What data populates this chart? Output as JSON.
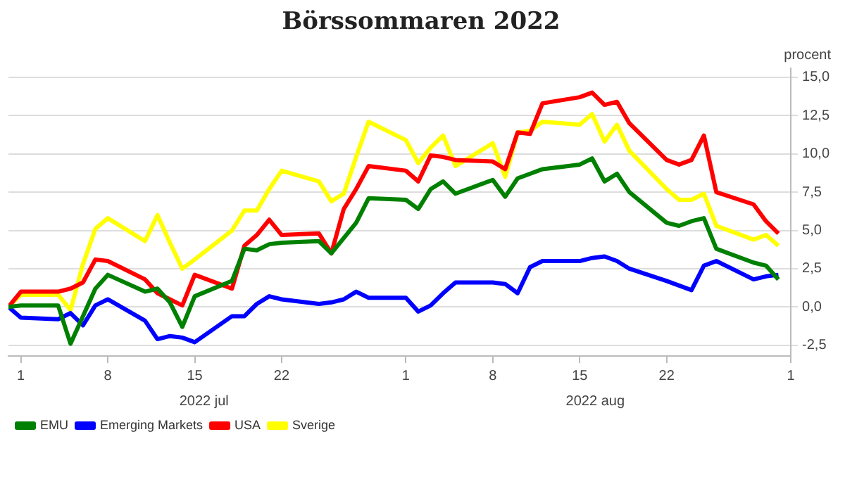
{
  "chart_data": {
    "type": "line",
    "title": "Börssommaren 2022",
    "ylabel": "procent",
    "x": [
      "2022-06-30",
      "2022-07-01",
      "2022-07-04",
      "2022-07-05",
      "2022-07-06",
      "2022-07-07",
      "2022-07-08",
      "2022-07-11",
      "2022-07-12",
      "2022-07-13",
      "2022-07-14",
      "2022-07-15",
      "2022-07-18",
      "2022-07-19",
      "2022-07-20",
      "2022-07-21",
      "2022-07-22",
      "2022-07-25",
      "2022-07-26",
      "2022-07-27",
      "2022-07-28",
      "2022-07-29",
      "2022-08-01",
      "2022-08-02",
      "2022-08-03",
      "2022-08-04",
      "2022-08-05",
      "2022-08-08",
      "2022-08-09",
      "2022-08-10",
      "2022-08-11",
      "2022-08-12",
      "2022-08-15",
      "2022-08-16",
      "2022-08-17",
      "2022-08-18",
      "2022-08-19",
      "2022-08-22",
      "2022-08-23",
      "2022-08-24",
      "2022-08-25",
      "2022-08-26",
      "2022-08-29",
      "2022-08-30",
      "2022-08-31"
    ],
    "series": [
      {
        "name": "EMU",
        "color": "#008000",
        "values": [
          0,
          0.1,
          0.1,
          -2.4,
          -0.6,
          1.2,
          2.1,
          1.0,
          1.2,
          0.3,
          -1.3,
          0.7,
          1.7,
          3.8,
          3.7,
          4.1,
          4.2,
          4.3,
          3.5,
          4.5,
          5.5,
          7.1,
          7.0,
          6.4,
          7.7,
          8.2,
          7.4,
          8.3,
          7.2,
          8.4,
          8.7,
          9.0,
          9.3,
          9.7,
          8.2,
          8.7,
          7.5,
          5.5,
          5.3,
          5.6,
          5.8,
          3.8,
          2.9,
          2.7,
          1.8
        ]
      },
      {
        "name": "Emerging Markets",
        "color": "#0000ff",
        "values": [
          0,
          -0.7,
          -0.8,
          -0.4,
          -1.2,
          0.1,
          0.5,
          -0.9,
          -2.1,
          -1.9,
          -2.0,
          -2.3,
          -0.6,
          -0.6,
          0.2,
          0.7,
          0.5,
          0.2,
          0.3,
          0.5,
          1.0,
          0.6,
          0.6,
          -0.3,
          0.1,
          0.9,
          1.6,
          1.6,
          1.5,
          0.9,
          2.6,
          3.0,
          3.0,
          3.2,
          3.3,
          3.0,
          2.5,
          1.7,
          1.4,
          1.1,
          2.7,
          3.0,
          1.8,
          2.0,
          2.1
        ]
      },
      {
        "name": "USA",
        "color": "#ff0000",
        "values": [
          0,
          1.0,
          1.0,
          1.2,
          1.6,
          3.1,
          3.0,
          1.8,
          0.9,
          0.5,
          0.1,
          2.1,
          1.2,
          4.0,
          4.7,
          5.7,
          4.7,
          4.8,
          3.5,
          6.4,
          7.7,
          9.2,
          8.9,
          8.2,
          9.9,
          9.8,
          9.6,
          9.5,
          9.0,
          11.4,
          11.3,
          13.3,
          13.7,
          14.0,
          13.2,
          13.4,
          12.0,
          9.6,
          9.3,
          9.6,
          11.2,
          7.5,
          6.7,
          5.6,
          4.8
        ]
      },
      {
        "name": "Sverige",
        "color": "#ffff00",
        "values": [
          0,
          0.8,
          0.8,
          -0.2,
          2.8,
          5.1,
          5.8,
          4.3,
          6.0,
          4.2,
          2.5,
          3.1,
          5.0,
          6.3,
          6.3,
          7.7,
          8.9,
          8.2,
          6.9,
          7.4,
          9.8,
          12.1,
          10.9,
          9.4,
          10.4,
          11.2,
          9.2,
          10.7,
          8.5,
          11.4,
          11.5,
          12.1,
          11.9,
          12.6,
          10.8,
          11.9,
          10.2,
          7.7,
          7.0,
          7.0,
          7.4,
          5.3,
          4.4,
          4.7,
          4.0
        ]
      }
    ],
    "xlim": [
      "2022-06-30",
      "2022-09-01"
    ],
    "xticks": [
      {
        "value": "2022-07-01",
        "label": "1"
      },
      {
        "value": "2022-07-08",
        "label": "8"
      },
      {
        "value": "2022-07-15",
        "label": "15"
      },
      {
        "value": "2022-07-22",
        "label": "22"
      },
      {
        "value": "2022-08-01",
        "label": "1"
      },
      {
        "value": "2022-08-08",
        "label": "8"
      },
      {
        "value": "2022-08-15",
        "label": "15"
      },
      {
        "value": "2022-08-22",
        "label": "22"
      },
      {
        "value": "2022-09-01",
        "label": "1"
      }
    ],
    "ylim": [
      -3.2,
      15.6
    ],
    "yticks": [
      {
        "value": -2.5,
        "label": "-2,5"
      },
      {
        "value": 0,
        "label": "0,0"
      },
      {
        "value": 2.5,
        "label": "2,5"
      },
      {
        "value": 5,
        "label": "5,0"
      },
      {
        "value": 7.5,
        "label": "7,5"
      },
      {
        "value": 10,
        "label": "10,0"
      },
      {
        "value": 12.5,
        "label": "12,5"
      },
      {
        "value": 15,
        "label": "15,0"
      }
    ],
    "annotations": [
      "2022 jul",
      "2022 aug"
    ],
    "grid": "y",
    "legend": "bottom left"
  }
}
